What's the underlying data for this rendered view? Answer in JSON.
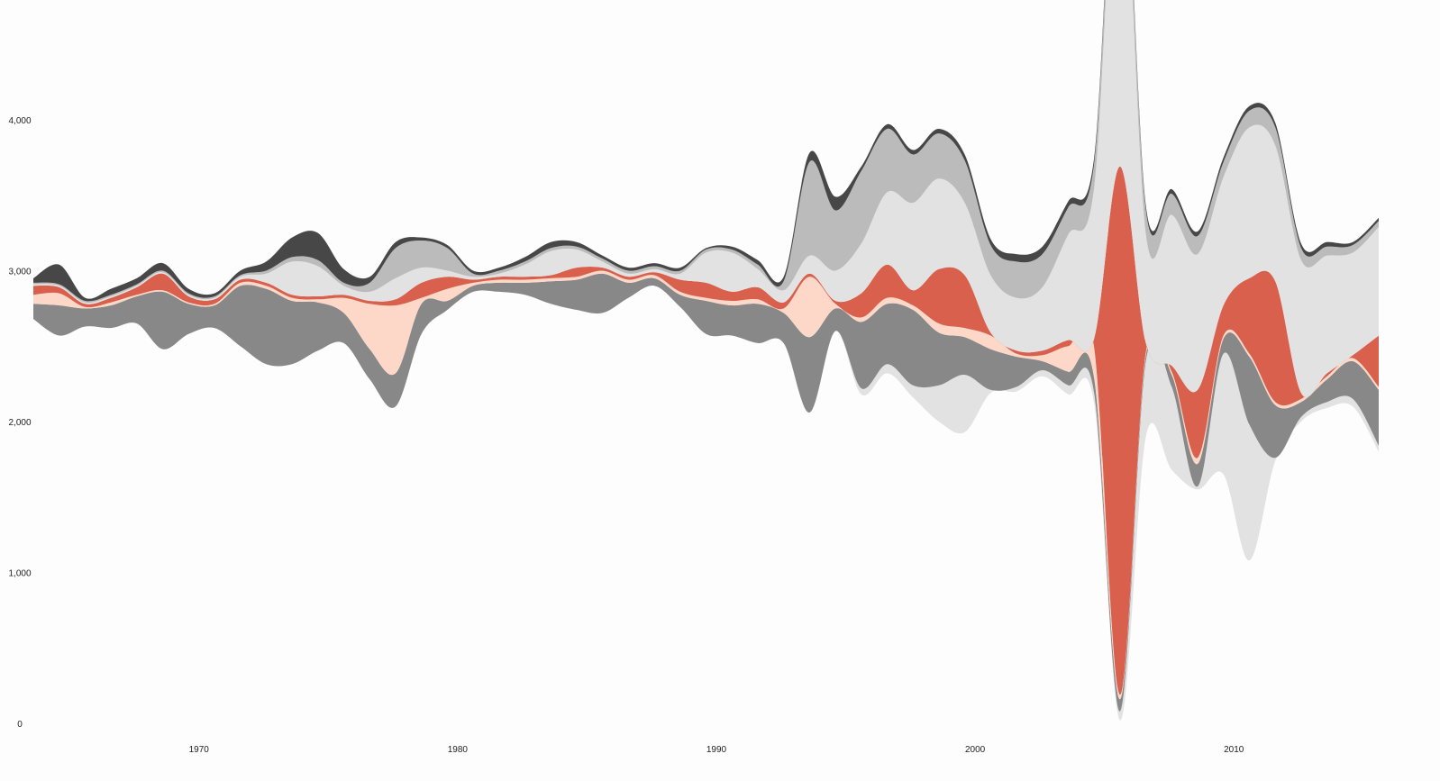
{
  "chart_data": {
    "type": "area",
    "title": "",
    "xlabel": "",
    "ylabel": "",
    "xlim": [
      1963.6,
      2015.6
    ],
    "ylim": [
      0,
      4800
    ],
    "grid": false,
    "legend": "none",
    "x_ticks": [
      "1970",
      "1980",
      "1990",
      "2000",
      "2010"
    ],
    "y_ticks": [
      "0",
      "1,000",
      "2,000",
      "3,000",
      "4,000"
    ],
    "colors": {
      "dark": "#474747",
      "red": "#d8604d",
      "peach": "#fdd8c8",
      "mid_gray": "#888888",
      "light_gray": "#e2e2e2",
      "silver": "#bbbbbb"
    },
    "x": [
      1963.6,
      1964.6,
      1965.6,
      1966.6,
      1967.6,
      1968.6,
      1969.6,
      1970.6,
      1971.6,
      1972.6,
      1973.6,
      1974.6,
      1975.6,
      1976.6,
      1977.6,
      1978.6,
      1979.6,
      1980.6,
      1981.6,
      1982.6,
      1983.6,
      1984.6,
      1985.6,
      1986.6,
      1987.6,
      1988.6,
      1989.6,
      1990.6,
      1991.6,
      1992.6,
      1993.6,
      1994.6,
      1995.6,
      1996.6,
      1997.6,
      1998.6,
      1999.6,
      2000.6,
      2001.6,
      2002.6,
      2003.6,
      2004.6,
      2005.6,
      2006.6,
      2007.6,
      2008.6,
      2009.6,
      2010.6,
      2011.6,
      2012.6,
      2013.6,
      2014.6,
      2015.6
    ],
    "series": [
      {
        "color": "#474747",
        "values": [
          30,
          130,
          20,
          40,
          40,
          50,
          30,
          20,
          30,
          60,
          130,
          180,
          90,
          40,
          40,
          20,
          20,
          20,
          20,
          30,
          40,
          30,
          20,
          20,
          20,
          20,
          10,
          20,
          30,
          30,
          60,
          90,
          30,
          30,
          30,
          30,
          40,
          40,
          50,
          50,
          40,
          40,
          40,
          30,
          30,
          30,
          30,
          30,
          30,
          30,
          30,
          20,
          20
        ]
      },
      {
        "color": "#bbbbbb",
        "values": [
          10,
          10,
          10,
          10,
          10,
          10,
          10,
          10,
          10,
          20,
          30,
          40,
          20,
          60,
          200,
          180,
          150,
          20,
          20,
          20,
          20,
          20,
          20,
          20,
          20,
          20,
          20,
          20,
          30,
          60,
          620,
          400,
          480,
          420,
          320,
          300,
          280,
          200,
          240,
          220,
          180,
          160,
          180,
          160,
          140,
          120,
          100,
          110,
          120,
          80,
          60,
          50,
          40
        ]
      },
      {
        "color": "#e2e2e2",
        "values": [
          10,
          10,
          10,
          10,
          10,
          10,
          10,
          10,
          20,
          60,
          220,
          200,
          60,
          60,
          140,
          100,
          40,
          20,
          20,
          80,
          160,
          120,
          40,
          20,
          20,
          40,
          200,
          260,
          120,
          80,
          120,
          200,
          330,
          480,
          580,
          600,
          480,
          380,
          350,
          420,
          700,
          1000,
          2300,
          720,
          1000,
          900,
          850,
          1000,
          900,
          880,
          780,
          680,
          720
        ]
      },
      {
        "color": "#d8604d",
        "values": [
          60,
          40,
          20,
          30,
          50,
          110,
          40,
          30,
          20,
          20,
          20,
          20,
          20,
          20,
          40,
          100,
          80,
          20,
          20,
          20,
          20,
          60,
          20,
          20,
          20,
          80,
          100,
          60,
          80,
          40,
          20,
          20,
          160,
          220,
          100,
          360,
          350,
          20,
          20,
          30,
          40,
          60,
          3500,
          60,
          40,
          450,
          200,
          500,
          800,
          40,
          20,
          20,
          340
        ]
      },
      {
        "color": "#fdd8c8",
        "values": [
          60,
          80,
          10,
          20,
          10,
          10,
          10,
          10,
          20,
          20,
          20,
          20,
          100,
          300,
          450,
          40,
          80,
          20,
          20,
          20,
          20,
          20,
          20,
          20,
          20,
          20,
          20,
          30,
          30,
          30,
          400,
          30,
          30,
          40,
          30,
          60,
          60,
          90,
          20,
          40,
          170,
          200,
          30,
          20,
          20,
          40,
          20,
          20,
          20,
          20,
          20,
          20,
          20
        ]
      },
      {
        "color": "#888888",
        "values": [
          100,
          200,
          120,
          150,
          180,
          380,
          200,
          150,
          400,
          500,
          420,
          320,
          200,
          200,
          220,
          200,
          60,
          40,
          60,
          80,
          150,
          200,
          260,
          100,
          50,
          80,
          220,
          200,
          260,
          200,
          500,
          150,
          440,
          400,
          500,
          350,
          250,
          270,
          200,
          60,
          90,
          100,
          80,
          40,
          80,
          150,
          100,
          450,
          350,
          100,
          150,
          250,
          370
        ]
      },
      {
        "color": "#e2e2e2",
        "values": [
          0,
          0,
          0,
          0,
          0,
          0,
          0,
          0,
          0,
          0,
          0,
          0,
          0,
          0,
          0,
          0,
          0,
          0,
          0,
          0,
          0,
          0,
          0,
          0,
          0,
          0,
          0,
          0,
          0,
          0,
          0,
          0,
          40,
          60,
          80,
          240,
          380,
          20,
          30,
          40,
          60,
          70,
          60,
          500,
          550,
          20,
          800,
          900,
          20,
          30,
          40,
          50,
          40
        ]
      }
    ],
    "baseline": [
      2680,
      2570,
      2630,
      2620,
      2650,
      2480,
      2580,
      2620,
      2500,
      2380,
      2380,
      2470,
      2520,
      2280,
      2100,
      2580,
      2740,
      2860,
      2860,
      2840,
      2780,
      2740,
      2720,
      2820,
      2900,
      2760,
      2580,
      2570,
      2520,
      2520,
      2060,
      2600,
      2180,
      2320,
      2160,
      2000,
      1930,
      2190,
      2200,
      2300,
      2180,
      2120,
      20,
      1900,
      1680,
      1550,
      1650,
      1080,
      1740,
      2000,
      2090,
      2100,
      1800
    ]
  }
}
